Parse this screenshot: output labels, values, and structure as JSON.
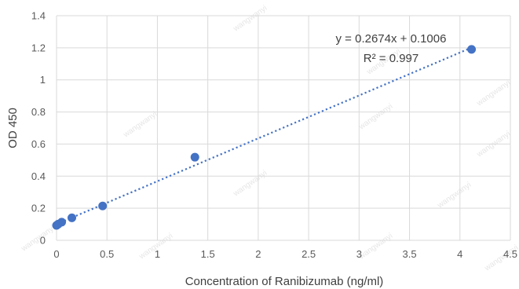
{
  "chart_data": {
    "type": "scatter",
    "xlabel": "Concentration of Ranibizumab (ng/ml)",
    "ylabel": "OD 450",
    "xlim": [
      0,
      4.5
    ],
    "ylim": [
      0,
      1.4
    ],
    "xticks": [
      0,
      0.5,
      1,
      1.5,
      2,
      2.5,
      3,
      3.5,
      4,
      4.5
    ],
    "yticks": [
      0,
      0.2,
      0.4,
      0.6,
      0.8,
      1,
      1.2,
      1.4
    ],
    "grid": true,
    "series": [
      {
        "x": [
          0.0,
          0.017,
          0.051,
          0.152,
          0.457,
          1.372,
          4.115
        ],
        "y": [
          0.093,
          0.101,
          0.113,
          0.14,
          0.214,
          0.518,
          1.19
        ]
      }
    ],
    "trendline": {
      "slope": 0.2674,
      "intercept": 0.1006,
      "equation_label": "y = 0.2674x + 0.1006",
      "r2_label": "R² = 0.997"
    },
    "watermark": "wangwanyi",
    "colors": {
      "marker": "#4472C4",
      "trendline": "#4472C4",
      "grid": "#d9d9d9"
    }
  }
}
